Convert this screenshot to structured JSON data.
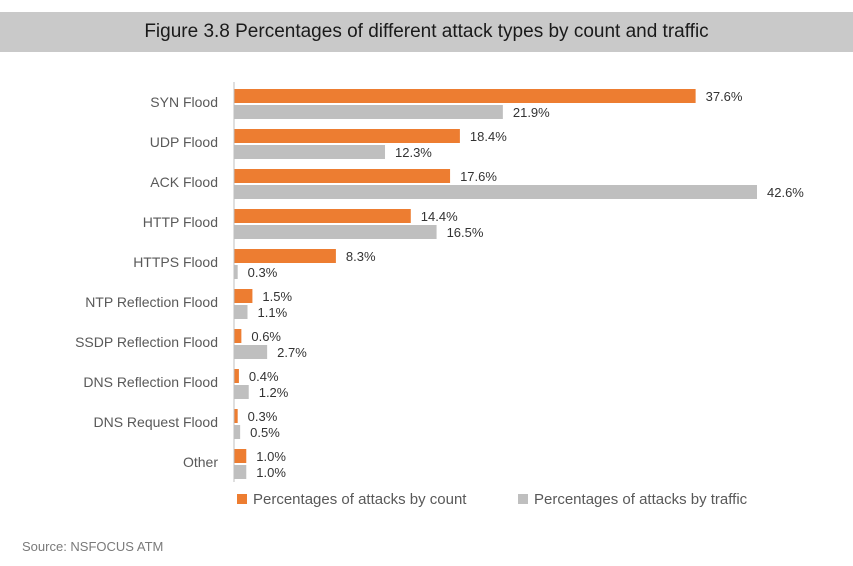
{
  "chart_data": {
    "type": "bar",
    "orientation": "horizontal",
    "title": "Figure 3.8 Percentages of different attack types by count and traffic",
    "categories": [
      "SYN Flood",
      "UDP Flood",
      "ACK  Flood",
      "HTTP Flood",
      "HTTPS Flood",
      "NTP Reflection Flood",
      "SSDP Reflection Flood",
      "DNS Reflection Flood",
      "DNS Request Flood",
      "Other"
    ],
    "series": [
      {
        "name": "Percentages of attacks by count",
        "color": "#ed7d31",
        "values": [
          37.6,
          18.4,
          17.6,
          14.4,
          8.3,
          1.5,
          0.6,
          0.4,
          0.3,
          1.0
        ],
        "labels": [
          "37.6%",
          "18.4%",
          "17.6%",
          "14.4%",
          "8.3%",
          "1.5%",
          "0.6%",
          "0.4%",
          "0.3%",
          "1.0%"
        ]
      },
      {
        "name": "Percentages of attacks by traffic",
        "color": "#bfbfbf",
        "values": [
          21.9,
          12.3,
          42.6,
          16.5,
          0.3,
          1.1,
          2.7,
          1.2,
          0.5,
          1.0
        ],
        "labels": [
          "21.9%",
          "12.3%",
          "42.6%",
          "16.5%",
          "0.3%",
          "1.1%",
          "2.7%",
          "1.2%",
          "0.5%",
          "1.0%"
        ]
      }
    ],
    "xlim": [
      0,
      45
    ],
    "legend_position": "bottom",
    "grid": false
  },
  "source": "Source: NSFOCUS ATM"
}
